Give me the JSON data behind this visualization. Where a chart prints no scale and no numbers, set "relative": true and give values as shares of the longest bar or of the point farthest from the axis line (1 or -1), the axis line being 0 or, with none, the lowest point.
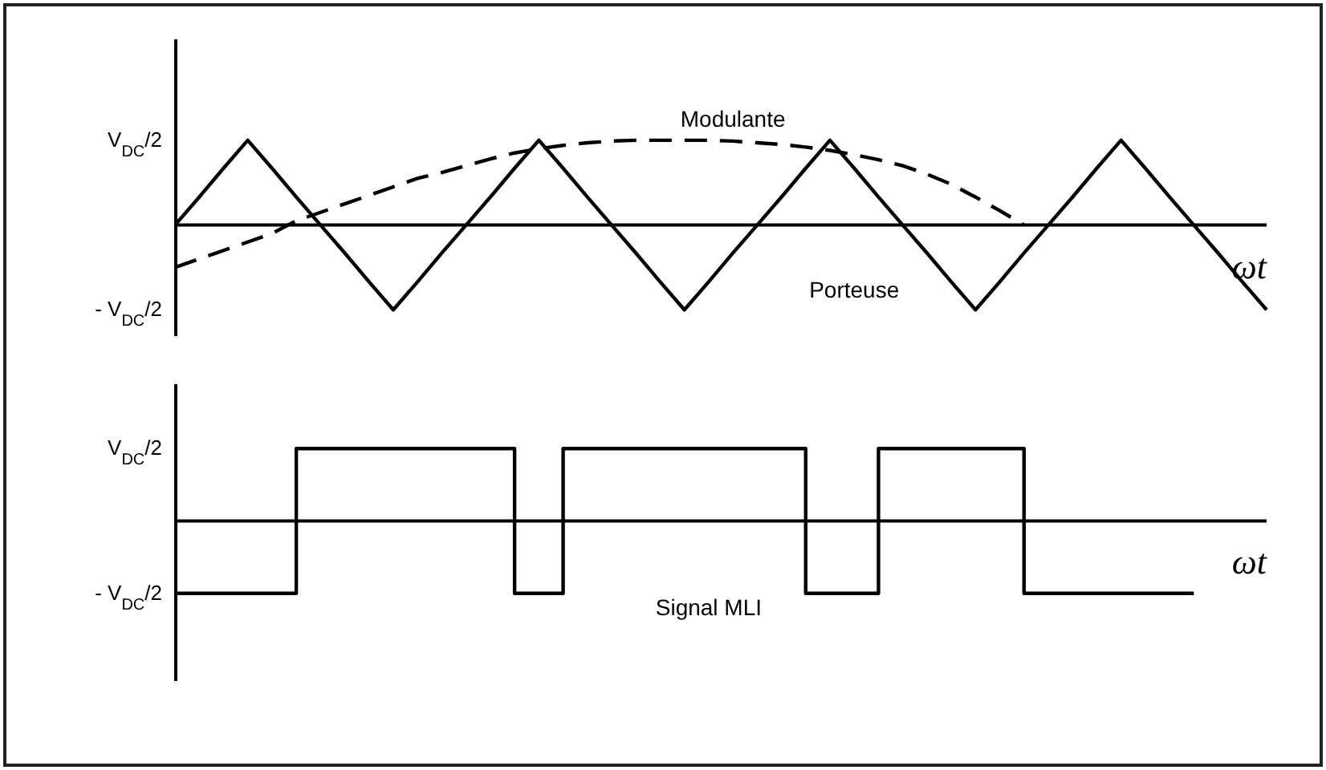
{
  "chart_data": [
    {
      "type": "line",
      "xlabel": "ωt",
      "categories": [
        null,
        null,
        null,
        null,
        null,
        null,
        null,
        null,
        null,
        null,
        null,
        null,
        null,
        null,
        null,
        null,
        null,
        null,
        null,
        null,
        null,
        null,
        null,
        null,
        null,
        null,
        null,
        null,
        null,
        null,
        null,
        null,
        null,
        null,
        null,
        null,
        null,
        null,
        null,
        null,
        null,
        null,
        null,
        null,
        null,
        null
      ],
      "relative": true,
      "annotations": [
        "V$_{DC}$/2",
        "- V$_{DC}$/2"
      ],
      "tick_labels": false,
      "marker": "none",
      "series": [
        {
          "name": "Porteuse",
          "color": "#000000",
          "line_style": "solid",
          "values": [
            0,
            0.33,
            0.67,
            1,
            0.67,
            0.33,
            0,
            -0.33,
            -0.67,
            -1,
            -0.67,
            -0.33,
            0,
            0.33,
            0.67,
            1,
            0.67,
            0.33,
            0,
            -0.33,
            -0.67,
            -1,
            -0.67,
            -0.33,
            0,
            0.33,
            0.67,
            1,
            0.67,
            0.33,
            0,
            -0.33,
            -0.67,
            -1,
            -0.67,
            -0.33,
            0,
            0.33,
            0.67,
            1,
            0.67,
            0.33,
            0,
            -0.33,
            -0.67,
            -1
          ]
        },
        {
          "name": "Modulante",
          "color": "#000000",
          "line_style": "dashed",
          "values": [
            -0.5,
            -0.4,
            -0.3,
            -0.2,
            -0.1,
            0.05,
            0.15,
            0.25,
            0.35,
            0.45,
            0.55,
            0.62,
            0.7,
            0.78,
            0.85,
            0.9,
            0.94,
            0.97,
            0.99,
            1,
            1,
            1,
            1,
            0.99,
            0.97,
            0.95,
            0.92,
            0.88,
            0.83,
            0.77,
            0.7,
            0.6,
            0.48,
            0.33,
            0.17,
            0,
            null,
            null,
            null,
            null,
            null,
            null,
            null,
            null,
            null,
            null
          ]
        }
      ]
    },
    {
      "type": "step",
      "xlabel": "ωt",
      "categories": [
        null,
        null,
        null,
        null,
        null,
        null,
        null,
        null,
        null,
        null,
        null,
        null,
        null,
        null,
        null,
        null,
        null,
        null,
        null,
        null,
        null,
        null,
        null,
        null,
        null,
        null,
        null,
        null,
        null,
        null,
        null,
        null,
        null,
        null,
        null,
        null,
        null,
        null,
        null,
        null,
        null,
        null,
        null,
        null,
        null,
        null
      ],
      "relative": true,
      "annotations": [
        "V$_{DC}$/2",
        "- V$_{DC}$/2"
      ],
      "tick_labels": false,
      "marker": "none",
      "series": [
        {
          "name": "Signal MLI",
          "color": "#000000",
          "line_style": "solid",
          "values": [
            -1,
            -1,
            -1,
            -1,
            -1,
            1,
            1,
            1,
            1,
            1,
            1,
            1,
            1,
            1,
            -1,
            -1,
            1,
            1,
            1,
            1,
            1,
            1,
            1,
            1,
            1,
            1,
            -1,
            -1,
            -1,
            1,
            1,
            1,
            1,
            1,
            1,
            -1,
            -1,
            -1,
            -1,
            -1,
            -1,
            -1,
            -1,
            null,
            null,
            null
          ]
        }
      ]
    }
  ]
}
